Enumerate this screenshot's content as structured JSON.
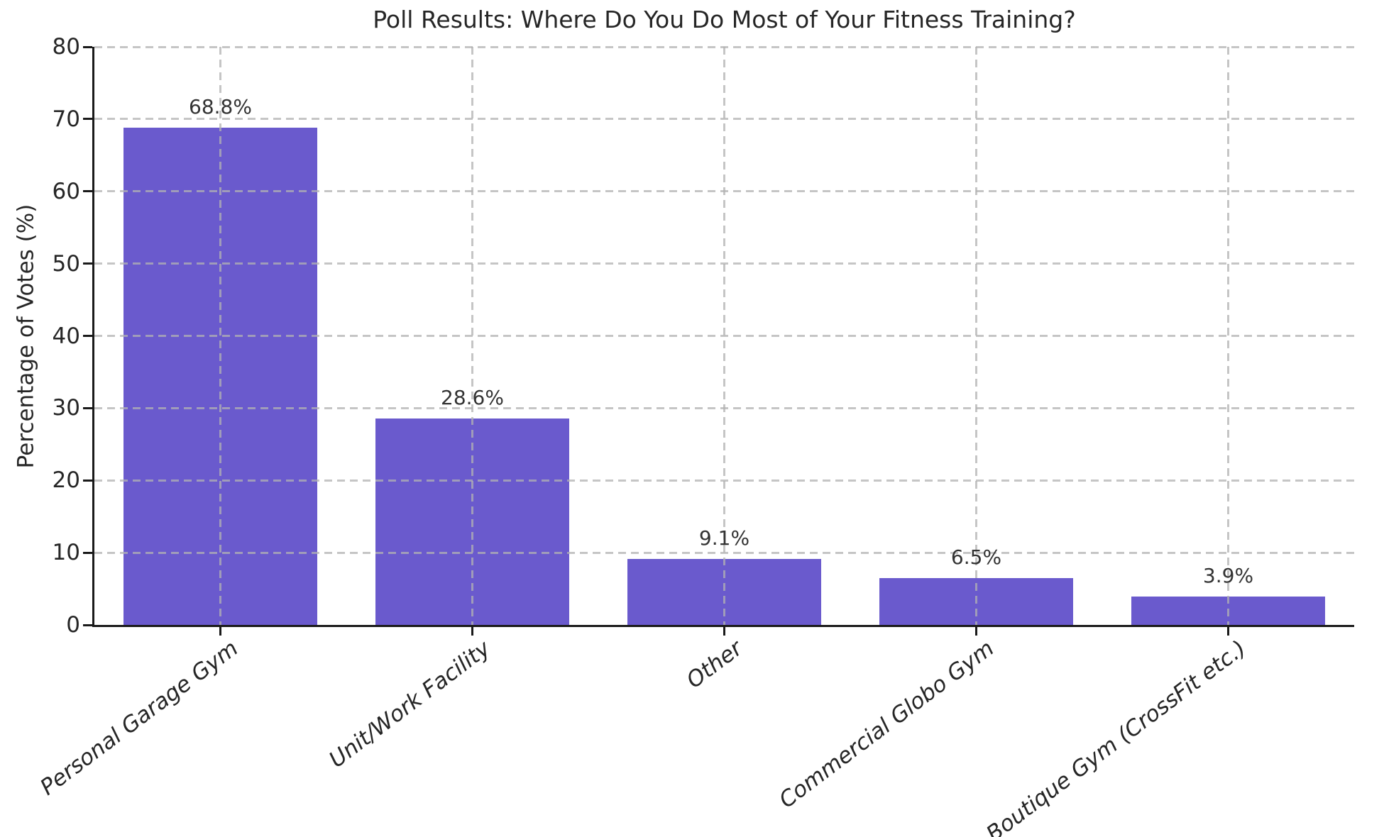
{
  "chart_data": {
    "type": "bar",
    "title": "Poll Results: Where Do You Do Most of Your Fitness Training?",
    "ylabel": "Percentage of Votes (%)",
    "xlabel": "",
    "categories": [
      "Personal Garage Gym",
      "Unit/Work Facility",
      "Other",
      "Commercial Globo Gym",
      "Boutique Gym (CrossFit etc.)"
    ],
    "values": [
      68.8,
      28.6,
      9.1,
      6.5,
      3.9
    ],
    "value_labels": [
      "68.8%",
      "28.6%",
      "9.1%",
      "6.5%",
      "3.9%"
    ],
    "ylim": [
      0,
      80
    ],
    "yticks": [
      0,
      10,
      20,
      30,
      40,
      50,
      60,
      70,
      80
    ],
    "grid": "dashed, horizontal and vertical, drawn above bars",
    "legend_position": "none",
    "bar_color": "#6A5ACD",
    "background_color": "#ffffff",
    "text_color": "#262626",
    "grid_color": "#b2b2b2",
    "axis_color": "#1a1a1a"
  }
}
